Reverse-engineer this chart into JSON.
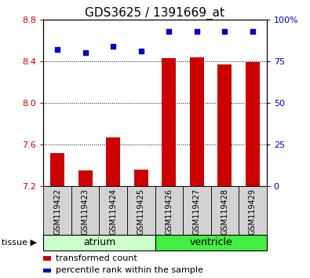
{
  "title": "GDS3625 / 1391669_at",
  "samples": [
    "GSM119422",
    "GSM119423",
    "GSM119424",
    "GSM119425",
    "GSM119426",
    "GSM119427",
    "GSM119428",
    "GSM119429"
  ],
  "bar_values": [
    7.52,
    7.35,
    7.67,
    7.36,
    8.43,
    8.44,
    8.37,
    8.39
  ],
  "percentile_values": [
    82,
    80,
    84,
    81,
    93,
    93,
    93,
    93
  ],
  "ylim_left": [
    7.2,
    8.8
  ],
  "ylim_right": [
    0,
    100
  ],
  "yticks_left": [
    7.2,
    7.6,
    8.0,
    8.4,
    8.8
  ],
  "yticks_right": [
    0,
    25,
    50,
    75,
    100
  ],
  "bar_color": "#cc0000",
  "scatter_color": "#0000cc",
  "tissue_groups": [
    {
      "label": "atrium",
      "start": 0,
      "end": 3,
      "color": "#ccffcc"
    },
    {
      "label": "ventricle",
      "start": 4,
      "end": 7,
      "color": "#44ee44"
    }
  ],
  "tissue_label": "tissue",
  "legend_bar_label": "transformed count",
  "legend_scatter_label": "percentile rank within the sample",
  "tick_label_color_left": "#cc0000",
  "tick_label_color_right": "#0000cc",
  "title_fontsize": 11,
  "axis_tick_fontsize": 8,
  "sample_label_fontsize": 7,
  "tissue_fontsize": 9,
  "legend_fontsize": 8
}
